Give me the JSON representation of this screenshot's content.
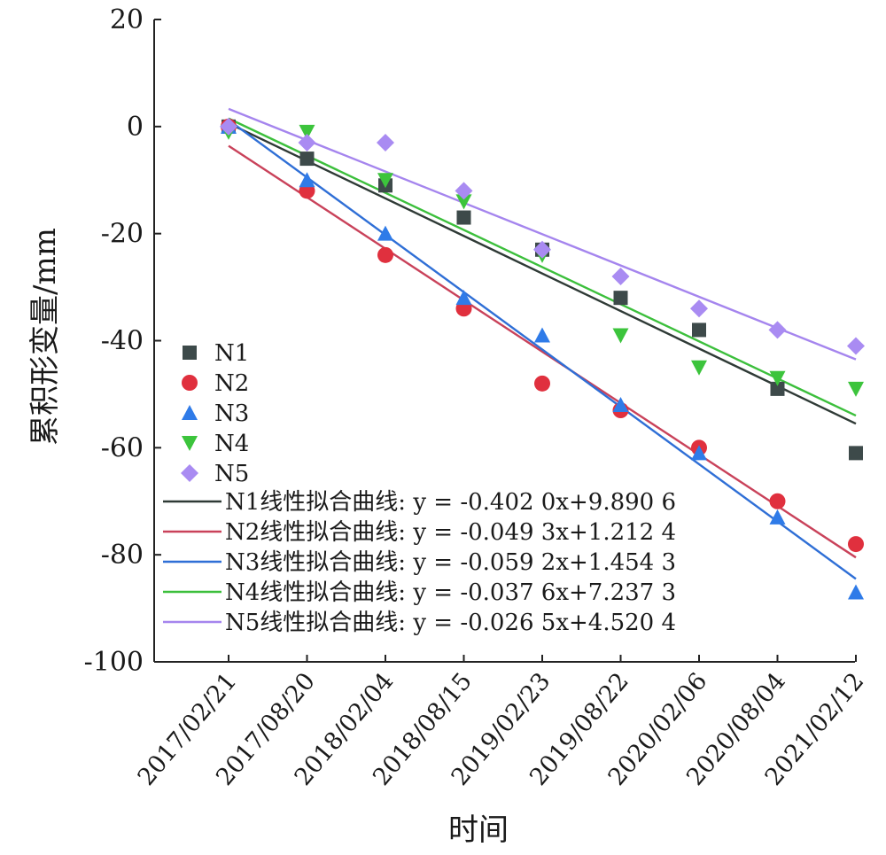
{
  "chart_data": {
    "type": "scatter",
    "xlabel": "时间",
    "ylabel": "累积形变量/mm",
    "ylim": [
      -100,
      20
    ],
    "yticks": [
      20,
      0,
      -20,
      -40,
      -60,
      -80,
      -100
    ],
    "categories": [
      "2017/02/21",
      "2017/08/20",
      "2018/02/04",
      "2018/08/15",
      "2019/02/23",
      "2019/08/22",
      "2020/02/06",
      "2020/08/04",
      "2021/02/12"
    ],
    "grid": false,
    "legend_position": "lower-left",
    "series": [
      {
        "name": "N1",
        "marker": "square",
        "color": "#3d4a4a",
        "values": [
          0,
          -6,
          -11,
          -17,
          -23,
          -32,
          -38,
          -49,
          -61
        ]
      },
      {
        "name": "N2",
        "marker": "circle",
        "color": "#e0303e",
        "values": [
          0,
          -12,
          -24,
          -34,
          -48,
          -53,
          -60,
          -70,
          -78
        ]
      },
      {
        "name": "N3",
        "marker": "triangle-up",
        "color": "#2f7be8",
        "values": [
          0,
          -10,
          -20,
          -32,
          -39,
          -52,
          -61,
          -73,
          -87
        ]
      },
      {
        "name": "N4",
        "marker": "triangle-down",
        "color": "#3cc43c",
        "values": [
          -1,
          -1,
          -10,
          -14,
          -24,
          -39,
          -45,
          -47,
          -49
        ]
      },
      {
        "name": "N5",
        "marker": "diamond",
        "color": "#a98bf2",
        "values": [
          0,
          -3,
          -3,
          -12,
          -23,
          -28,
          -34,
          -38,
          -41
        ]
      }
    ],
    "fits": [
      {
        "name": "N1线性拟合曲线",
        "equation": "y = -0.402 0x+9.890 6",
        "color": "#2f3a36",
        "start": 0.6,
        "end": -55.5
      },
      {
        "name": "N2线性拟合曲线",
        "equation": "y = -0.049 3x+1.212 4",
        "color": "#c9425a",
        "start": -3.6,
        "end": -80.5
      },
      {
        "name": "N3线性拟合曲线",
        "equation": "y = -0.059 2x+1.454 3",
        "color": "#2f6fd6",
        "start": 1.2,
        "end": -84.5
      },
      {
        "name": "N4线性拟合曲线",
        "equation": "y = -0.037 6x+7.237 3",
        "color": "#3cbf3c",
        "start": 1.5,
        "end": -54.0
      },
      {
        "name": "N5线性拟合曲线",
        "equation": "y = -0.026 5x+4.520 4",
        "color": "#a585ee",
        "start": 3.3,
        "end": -43.5
      }
    ]
  }
}
